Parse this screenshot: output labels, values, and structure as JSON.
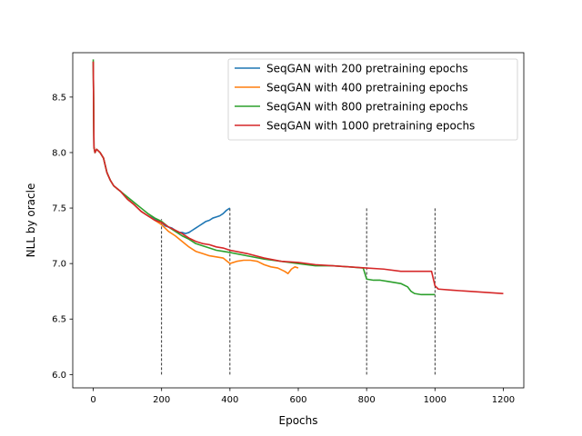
{
  "chart_data": {
    "type": "line",
    "title": "",
    "xlabel": "Epochs",
    "ylabel": "NLL by oracle",
    "xlim": [
      -60,
      1260
    ],
    "ylim": [
      5.88,
      8.9
    ],
    "xticks": [
      0,
      200,
      400,
      600,
      800,
      1000,
      1200
    ],
    "xtick_labels": [
      "0",
      "200",
      "400",
      "600",
      "800",
      "1000",
      "1200"
    ],
    "yticks": [
      6.0,
      6.5,
      7.0,
      7.5,
      8.0,
      8.5
    ],
    "ytick_labels": [
      "6.0",
      "6.5",
      "7.0",
      "7.5",
      "8.0",
      "8.5"
    ],
    "grid": false,
    "legend_position": "upper right",
    "series": [
      {
        "name": "SeqGAN with 200 pretraining epochs",
        "color": "#1f77b4",
        "x": [
          0,
          2,
          5,
          10,
          20,
          30,
          40,
          50,
          60,
          80,
          100,
          120,
          140,
          160,
          180,
          200,
          210,
          220,
          230,
          240,
          250,
          260,
          270,
          280,
          290,
          300,
          310,
          320,
          330,
          340,
          350,
          360,
          370,
          380,
          390,
          400
        ],
        "y": [
          8.82,
          8.05,
          8.0,
          8.03,
          8.0,
          7.95,
          7.82,
          7.75,
          7.7,
          7.65,
          7.58,
          7.53,
          7.47,
          7.43,
          7.4,
          7.37,
          7.34,
          7.33,
          7.32,
          7.3,
          7.28,
          7.28,
          7.27,
          7.28,
          7.3,
          7.32,
          7.34,
          7.36,
          7.38,
          7.39,
          7.41,
          7.42,
          7.43,
          7.45,
          7.48,
          7.5
        ]
      },
      {
        "name": "SeqGAN with 400 pretraining epochs",
        "color": "#ff7f0e",
        "x": [
          0,
          2,
          5,
          10,
          20,
          30,
          40,
          50,
          60,
          80,
          100,
          120,
          140,
          160,
          180,
          200,
          220,
          240,
          260,
          280,
          300,
          320,
          340,
          360,
          380,
          400,
          420,
          440,
          460,
          480,
          500,
          520,
          540,
          560,
          570,
          580,
          590,
          600
        ],
        "y": [
          8.82,
          8.05,
          8.0,
          8.03,
          8.0,
          7.95,
          7.82,
          7.75,
          7.7,
          7.65,
          7.58,
          7.53,
          7.47,
          7.43,
          7.39,
          7.35,
          7.29,
          7.25,
          7.2,
          7.15,
          7.11,
          7.09,
          7.07,
          7.06,
          7.05,
          7.0,
          7.02,
          7.03,
          7.03,
          7.02,
          6.99,
          6.97,
          6.96,
          6.93,
          6.91,
          6.95,
          6.97,
          6.96
        ]
      },
      {
        "name": "SeqGAN with 800 pretraining epochs",
        "color": "#2ca02c",
        "x": [
          0,
          2,
          5,
          10,
          20,
          30,
          40,
          50,
          60,
          80,
          100,
          120,
          140,
          160,
          180,
          200,
          220,
          240,
          260,
          280,
          300,
          320,
          340,
          360,
          380,
          400,
          450,
          500,
          550,
          600,
          650,
          700,
          750,
          790,
          800,
          820,
          840,
          860,
          880,
          900,
          920,
          930,
          940,
          960,
          980,
          1000
        ],
        "y": [
          8.84,
          8.05,
          8.0,
          8.03,
          8.0,
          7.95,
          7.82,
          7.75,
          7.7,
          7.65,
          7.6,
          7.55,
          7.5,
          7.45,
          7.41,
          7.38,
          7.33,
          7.29,
          7.25,
          7.22,
          7.18,
          7.16,
          7.14,
          7.12,
          7.11,
          7.1,
          7.07,
          7.04,
          7.02,
          7.0,
          6.98,
          6.98,
          6.97,
          6.96,
          6.86,
          6.85,
          6.85,
          6.84,
          6.83,
          6.82,
          6.79,
          6.75,
          6.73,
          6.72,
          6.72,
          6.72
        ]
      },
      {
        "name": "SeqGAN with 1000 pretraining epochs",
        "color": "#d62728",
        "x": [
          0,
          2,
          5,
          10,
          20,
          30,
          40,
          50,
          60,
          80,
          100,
          120,
          140,
          160,
          180,
          200,
          220,
          240,
          260,
          280,
          300,
          320,
          340,
          360,
          380,
          400,
          450,
          500,
          550,
          600,
          650,
          700,
          750,
          800,
          850,
          900,
          950,
          990,
          1000,
          1010,
          1050,
          1100,
          1150,
          1200
        ],
        "y": [
          8.82,
          8.05,
          8.0,
          8.03,
          8.0,
          7.95,
          7.82,
          7.75,
          7.7,
          7.65,
          7.58,
          7.53,
          7.47,
          7.43,
          7.39,
          7.37,
          7.33,
          7.3,
          7.27,
          7.23,
          7.2,
          7.18,
          7.17,
          7.15,
          7.14,
          7.12,
          7.09,
          7.05,
          7.02,
          7.01,
          6.99,
          6.98,
          6.97,
          6.96,
          6.95,
          6.93,
          6.93,
          6.93,
          6.8,
          6.77,
          6.76,
          6.75,
          6.74,
          6.73
        ]
      }
    ],
    "vlines": [
      {
        "x": 200,
        "y_from": 6.0,
        "y_to": 7.4
      },
      {
        "x": 400,
        "y_from": 6.0,
        "y_to": 7.5
      },
      {
        "x": 800,
        "y_from": 6.0,
        "y_to": 7.5
      },
      {
        "x": 1000,
        "y_from": 6.0,
        "y_to": 7.5
      }
    ]
  }
}
